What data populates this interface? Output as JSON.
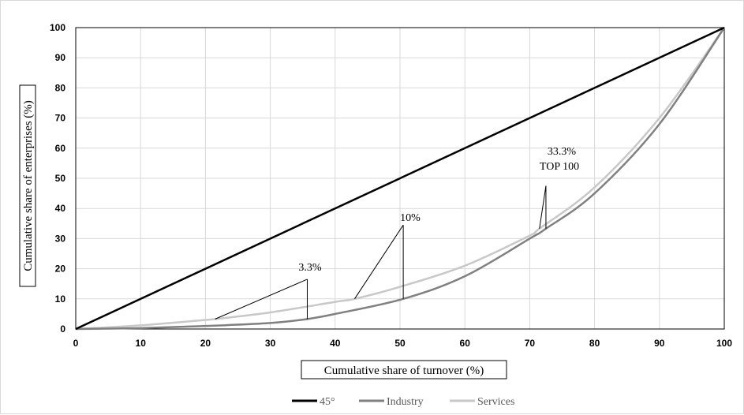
{
  "chart_data": {
    "type": "line",
    "title": "",
    "xlabel": "Cumulative share of turnover (%)",
    "ylabel": "Cumulative share of enterprises (%)",
    "xlim": [
      0,
      100
    ],
    "ylim": [
      0,
      100
    ],
    "xticks": [
      0,
      10,
      20,
      30,
      40,
      50,
      60,
      70,
      80,
      90,
      100
    ],
    "yticks": [
      0,
      10,
      20,
      30,
      40,
      50,
      60,
      70,
      80,
      90,
      100
    ],
    "grid": true,
    "legend_position": "bottom",
    "series": [
      {
        "name": "45°",
        "color": "#000000",
        "x": [
          0,
          100
        ],
        "y": [
          0,
          100
        ]
      },
      {
        "name": "Industry",
        "color": "#808080",
        "x": [
          0,
          10,
          20,
          30,
          35.7,
          40,
          50.5,
          60,
          70,
          72.5,
          80,
          90,
          100
        ],
        "y": [
          0,
          0.3,
          1,
          2,
          3.3,
          5,
          10,
          17.5,
          30,
          33.3,
          45,
          68,
          100
        ]
      },
      {
        "name": "Services",
        "color": "#c8c8c8",
        "x": [
          0,
          10,
          20,
          21.5,
          30,
          40,
          43,
          50,
          60,
          70,
          71.5,
          80,
          90,
          100
        ],
        "y": [
          0,
          1.2,
          3,
          3.3,
          5.5,
          9,
          10,
          14,
          21,
          31,
          33.3,
          47,
          70,
          100
        ]
      }
    ],
    "annotations": [
      {
        "text": "3.3%",
        "lines": [
          {
            "from": [
              35.7,
              16.5
            ],
            "to": [
              21.5,
              3.3
            ]
          },
          {
            "from": [
              35.7,
              16.5
            ],
            "to": [
              35.7,
              3.3
            ]
          }
        ]
      },
      {
        "text": "10%",
        "lines": [
          {
            "from": [
              50.5,
              34.5
            ],
            "to": [
              43,
              10
            ]
          },
          {
            "from": [
              50.5,
              34.5
            ],
            "to": [
              50.5,
              10
            ]
          }
        ]
      },
      {
        "text": "33.3%",
        "lines": [
          {
            "from": [
              72.5,
              47.5
            ],
            "to": [
              71.5,
              33.3
            ]
          },
          {
            "from": [
              72.5,
              47.5
            ],
            "to": [
              72.5,
              33.3
            ]
          }
        ]
      },
      {
        "text": "TOP 100",
        "lines": []
      }
    ]
  }
}
